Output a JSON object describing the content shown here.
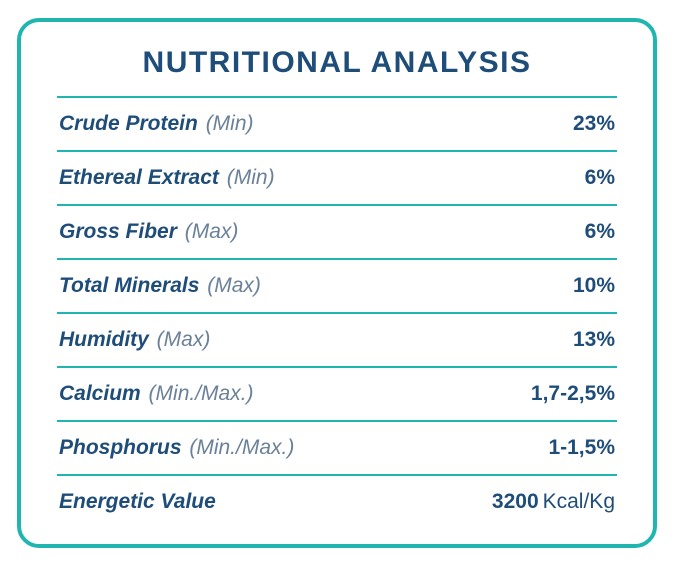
{
  "title": "NUTRITIONAL ANALYSIS",
  "border_color": "#21b5b0",
  "text_color": "#1f4d7a",
  "qualifier_color": "#6a8199",
  "background_color": "#ffffff",
  "border_radius": 22,
  "border_width": 4,
  "title_fontsize": 30,
  "row_fontsize": 21,
  "rows": [
    {
      "label": "Crude Protein",
      "qualifier": "(Min)",
      "value": "23",
      "unit": "%"
    },
    {
      "label": "Ethereal Extract",
      "qualifier": "(Min)",
      "value": "6",
      "unit": "%"
    },
    {
      "label": "Gross Fiber",
      "qualifier": "(Max)",
      "value": "6",
      "unit": "%"
    },
    {
      "label": "Total Minerals",
      "qualifier": "(Max)",
      "value": "10",
      "unit": "%"
    },
    {
      "label": "Humidity",
      "qualifier": "(Max)",
      "value": "13",
      "unit": "%"
    },
    {
      "label": "Calcium",
      "qualifier": "(Min./Max.)",
      "value": "1,7-2,5",
      "unit": "%"
    },
    {
      "label": "Phosphorus",
      "qualifier": "(Min./Max.)",
      "value": "1-1,5",
      "unit": "%"
    },
    {
      "label": "Energetic Value",
      "qualifier": "",
      "value": "3200",
      "unit": "Kcal/Kg"
    }
  ]
}
